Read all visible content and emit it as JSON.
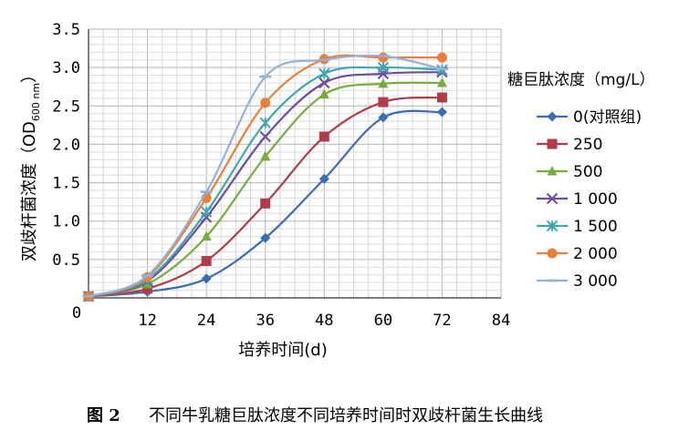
{
  "chart_data": {
    "type": "line",
    "xlabel": "培养时间(d)",
    "ylabel": "双歧杆菌浓度（OD600 nm）",
    "ylabel_main": "双歧杆菌浓度（OD",
    "ylabel_sub": "600 nm",
    "ylabel_close": "）",
    "xlim": [
      0,
      84
    ],
    "ylim": [
      0,
      3.5
    ],
    "x_ticks": [
      12,
      24,
      36,
      48,
      60,
      72,
      84
    ],
    "y_ticks": [
      0.5,
      1.0,
      1.5,
      2.0,
      2.5,
      3.0,
      3.5
    ],
    "x_tick_labels": [
      "12",
      "24",
      "36",
      "48",
      "60",
      "72",
      "84"
    ],
    "y_tick_labels": [
      "0.5",
      "1.0",
      "1.5",
      "2.0",
      "2.5",
      "3.0",
      "3.5"
    ],
    "origin_label": "0",
    "grid": true,
    "legend_title": "糖巨肽浓度（mg/L）",
    "legend_position": "right",
    "x": [
      0,
      12,
      24,
      36,
      48,
      60,
      72
    ],
    "series": [
      {
        "name": "0(对照组)",
        "color": "#3a6db3",
        "marker": "diamond",
        "values": [
          0.02,
          0.08,
          0.25,
          0.78,
          1.55,
          2.35,
          2.42
        ]
      },
      {
        "name": "250",
        "color": "#b23b48",
        "marker": "square",
        "values": [
          0.02,
          0.12,
          0.48,
          1.23,
          2.1,
          2.55,
          2.61
        ]
      },
      {
        "name": "500",
        "color": "#77ad3c",
        "marker": "triangle",
        "values": [
          0.02,
          0.18,
          0.8,
          1.84,
          2.65,
          2.79,
          2.8
        ]
      },
      {
        "name": "1 000",
        "color": "#6f4a9e",
        "marker": "x",
        "values": [
          0.02,
          0.22,
          1.05,
          2.1,
          2.8,
          2.92,
          2.94
        ]
      },
      {
        "name": "1 500",
        "color": "#3fa7b3",
        "marker": "star",
        "values": [
          0.02,
          0.24,
          1.12,
          2.28,
          2.92,
          3.0,
          2.97
        ]
      },
      {
        "name": "2 000",
        "color": "#e8803a",
        "marker": "circle",
        "values": [
          0.02,
          0.27,
          1.3,
          2.54,
          3.11,
          3.13,
          3.13
        ]
      },
      {
        "name": "3 000",
        "color": "#95b0d9",
        "marker": "plus",
        "values": [
          0.02,
          0.29,
          1.38,
          2.88,
          3.1,
          3.15,
          2.98
        ]
      }
    ]
  },
  "caption": {
    "figure_number": "图 2",
    "text": "不同牛乳糖巨肽浓度不同培养时间时双歧杆菌生长曲线"
  }
}
